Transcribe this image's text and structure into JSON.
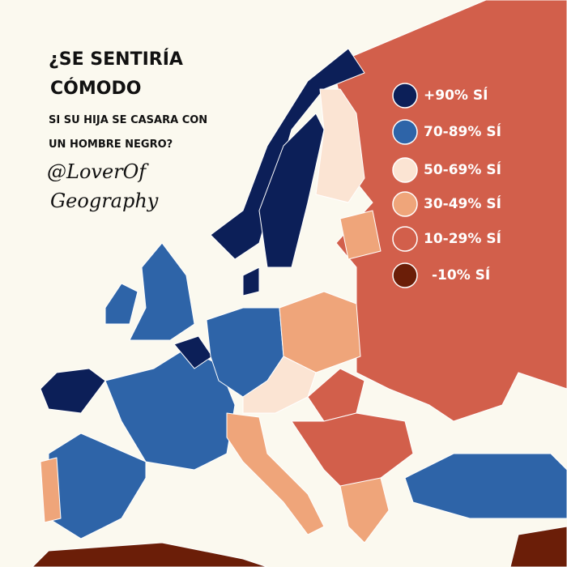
{
  "title": [
    "¿SE SENTIRÍA",
    "CÓMODO"
  ],
  "subtitle": [
    "SI SU HIJA SE CASARA CON",
    "UN HOMBRE NEGRO?"
  ],
  "author": [
    "@LoverOf",
    "Geography"
  ],
  "legend": [
    {
      "label": "+90% SÍ",
      "color": "#0c1f58"
    },
    {
      "label": "70-89% SÍ",
      "color": "#2e64a8"
    },
    {
      "label": "50-69% SÍ",
      "color": "#fbe4d3"
    },
    {
      "label": "30-49% SÍ",
      "color": "#efa57a"
    },
    {
      "label": "10-29% SÍ",
      "color": "#d25f4b"
    },
    {
      "label": "-10% SÍ",
      "color": "#6b1e08"
    }
  ]
}
